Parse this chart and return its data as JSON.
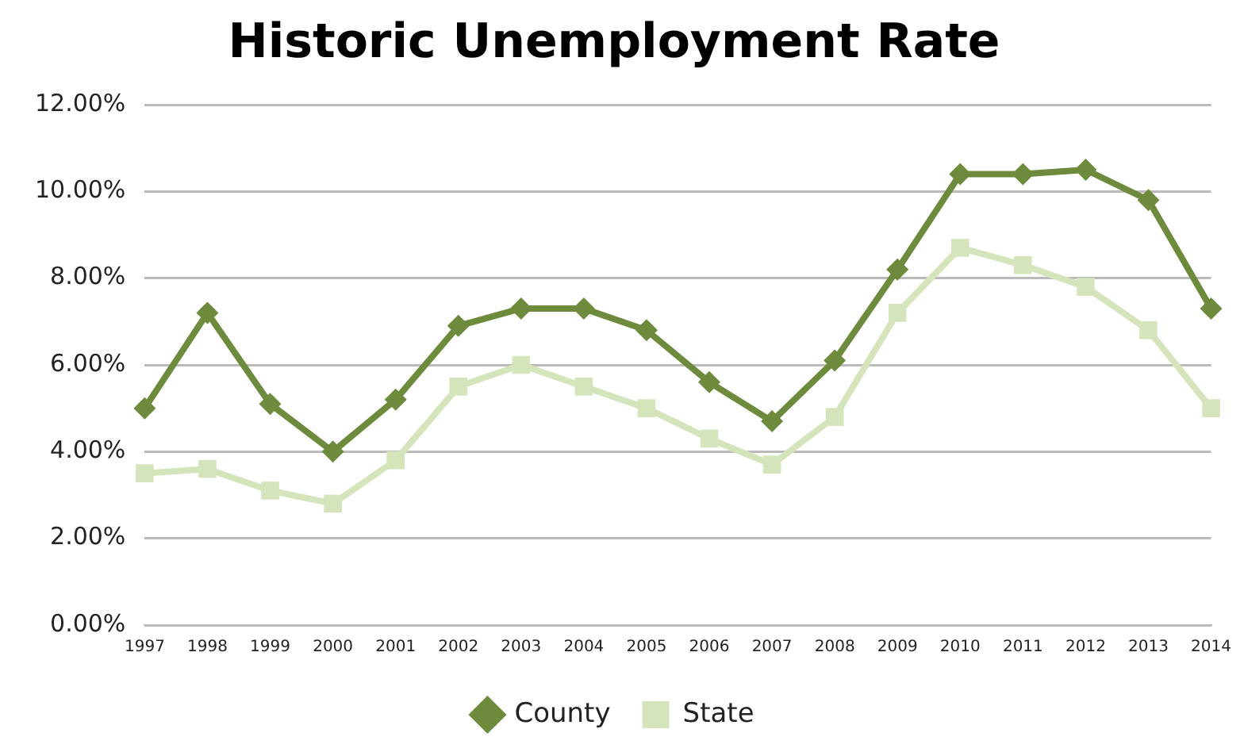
{
  "chart_data": {
    "type": "line",
    "title": "Historic Unemployment Rate",
    "categories": [
      "1997",
      "1998",
      "1999",
      "2000",
      "2001",
      "2002",
      "2003",
      "2004",
      "2005",
      "2006",
      "2007",
      "2008",
      "2009",
      "2010",
      "2011",
      "2012",
      "2013",
      "2014"
    ],
    "series": [
      {
        "name": "County",
        "color": "#6e8b3d",
        "marker": "diamond",
        "values": [
          5.0,
          7.2,
          5.1,
          4.0,
          5.2,
          6.9,
          7.3,
          7.3,
          6.8,
          5.6,
          4.7,
          6.1,
          8.2,
          10.4,
          10.4,
          10.5,
          9.8,
          7.3
        ]
      },
      {
        "name": "State",
        "color": "#d6e4bc",
        "marker": "square",
        "values": [
          3.5,
          3.6,
          3.1,
          2.8,
          3.8,
          5.5,
          6.0,
          5.5,
          5.0,
          4.3,
          3.7,
          4.8,
          7.2,
          8.7,
          8.3,
          7.8,
          6.8,
          5.0
        ]
      }
    ],
    "ylim": [
      0,
      12
    ],
    "yticks": [
      {
        "value": 0,
        "label": "0.00%"
      },
      {
        "value": 2,
        "label": "2.00%"
      },
      {
        "value": 4,
        "label": "4.00%"
      },
      {
        "value": 6,
        "label": "6.00%"
      },
      {
        "value": 8,
        "label": "8.00%"
      },
      {
        "value": 10,
        "label": "10.00%"
      },
      {
        "value": 12,
        "label": "12.00%"
      }
    ],
    "grid": "y",
    "legend": "bottom"
  }
}
